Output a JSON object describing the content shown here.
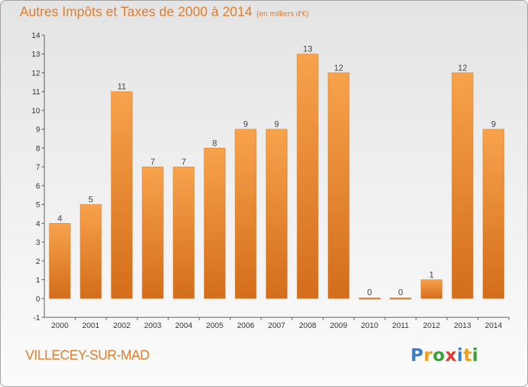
{
  "header": {
    "title": "Autres Impôts et Taxes de 2000 à 2014",
    "unit": "(en milliers d'€)"
  },
  "footer": {
    "town": "VILLECEY-SUR-MAD",
    "logo_letters": [
      "P",
      "r",
      "o",
      "x",
      "i",
      "t",
      "i"
    ]
  },
  "colors": {
    "title": "#e27d2b",
    "bar_top": "#f7a24c",
    "bar_bottom": "#d36d1b",
    "logo": [
      "#3a7fcf",
      "#f0a020",
      "#3aa03a",
      "#e23a2a",
      "#3a7fcf",
      "#f0a020",
      "#3aa03a"
    ]
  },
  "chart_data": {
    "type": "bar",
    "categories": [
      "2000",
      "2001",
      "2002",
      "2003",
      "2004",
      "2005",
      "2006",
      "2007",
      "2008",
      "2009",
      "2010",
      "2011",
      "2012",
      "2013",
      "2014"
    ],
    "values": [
      4,
      5,
      11,
      7,
      7,
      8,
      9,
      9,
      13,
      12,
      0,
      0,
      1,
      12,
      9
    ],
    "title": "Autres Impôts et Taxes de 2000 à 2014",
    "ylim": [
      -1,
      14
    ],
    "yticks": [
      -1,
      0,
      1,
      2,
      3,
      4,
      5,
      6,
      7,
      8,
      9,
      10,
      11,
      12,
      13,
      14
    ],
    "grid": false,
    "legend": "none"
  }
}
